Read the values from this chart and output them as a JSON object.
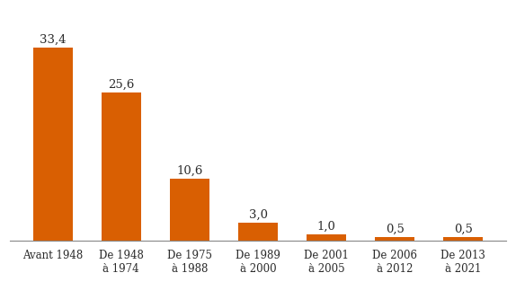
{
  "categories": [
    "Avant 1948",
    "De 1948\nà 1974",
    "De 1975\nà 1988",
    "De 1989\nà 2000",
    "De 2001\nà 2005",
    "De 2006\nà 2012",
    "De 2013\nà 2021"
  ],
  "values": [
    33.4,
    25.6,
    10.6,
    3.0,
    1.0,
    0.5,
    0.5
  ],
  "labels": [
    "33,4",
    "25,6",
    "10,6",
    "3,0",
    "1,0",
    "0,5",
    "0,5"
  ],
  "bar_color": "#d95f02",
  "background_color": "#ffffff",
  "label_color": "#2b2b2b",
  "label_fontsize": 9.5,
  "tick_label_fontsize": 8.5,
  "ylim": [
    0,
    40
  ],
  "bar_width": 0.58
}
